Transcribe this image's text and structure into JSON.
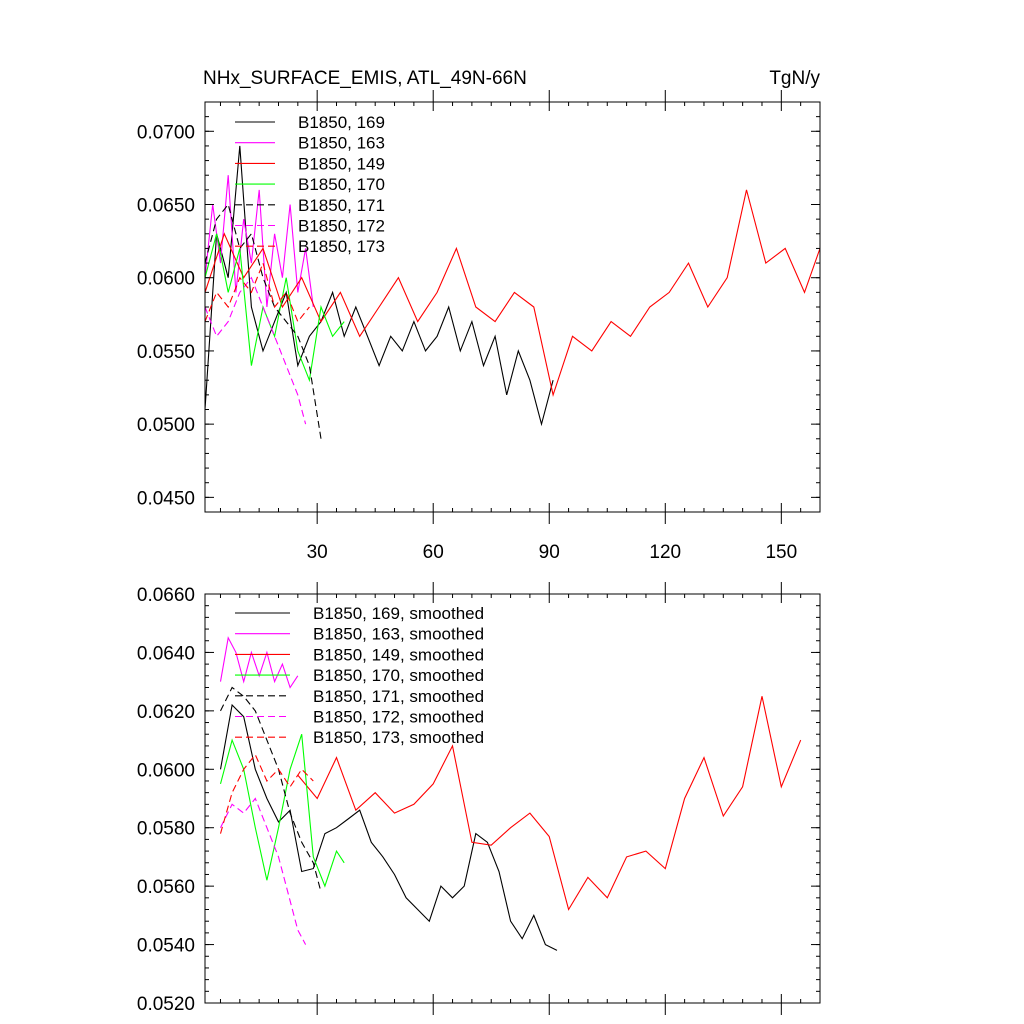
{
  "chart_data": [
    {
      "type": "line",
      "title": "NHx_SURFACE_EMIS, ATL_49N-66N",
      "units": "TgN/y",
      "xlim": [
        1,
        160
      ],
      "ylim": [
        0.044,
        0.072
      ],
      "xticks": [
        30,
        60,
        90,
        120,
        150
      ],
      "xtick_labels": [
        "30",
        "60",
        "90",
        "120",
        "150"
      ],
      "yticks": [
        0.045,
        0.05,
        0.055,
        0.06,
        0.065,
        0.07
      ],
      "ytick_labels": [
        "0.0450",
        "0.0500",
        "0.0550",
        "0.0600",
        "0.0650",
        "0.0700"
      ],
      "grid": false,
      "legend_position": "top-left",
      "series": [
        {
          "name": "B1850, 169",
          "color": "#000000",
          "dash": "solid",
          "x": [
            1,
            4,
            7,
            10,
            13,
            16,
            19,
            22,
            25,
            28,
            31,
            34,
            37,
            40,
            43,
            46,
            49,
            52,
            55,
            58,
            61,
            64,
            67,
            70,
            73,
            76,
            79,
            82,
            85,
            88,
            91
          ],
          "values": [
            0.051,
            0.063,
            0.06,
            0.069,
            0.058,
            0.055,
            0.057,
            0.059,
            0.054,
            0.056,
            0.057,
            0.059,
            0.056,
            0.058,
            0.056,
            0.054,
            0.056,
            0.055,
            0.057,
            0.055,
            0.056,
            0.058,
            0.055,
            0.057,
            0.054,
            0.056,
            0.052,
            0.055,
            0.053,
            0.05,
            0.053
          ]
        },
        {
          "name": "B1850, 163",
          "color": "#ff00ff",
          "dash": "solid",
          "x": [
            1,
            3,
            5,
            7,
            9,
            11,
            13,
            15,
            17,
            19,
            21,
            23,
            25,
            27,
            29
          ],
          "values": [
            0.06,
            0.065,
            0.061,
            0.067,
            0.059,
            0.064,
            0.061,
            0.066,
            0.058,
            0.063,
            0.06,
            0.065,
            0.059,
            0.062,
            0.058
          ]
        },
        {
          "name": "B1850, 149",
          "color": "#ff0000",
          "dash": "solid",
          "x": [
            1,
            6,
            11,
            16,
            21,
            26,
            31,
            36,
            41,
            46,
            51,
            56,
            61,
            66,
            71,
            76,
            81,
            86,
            91,
            96,
            101,
            106,
            111,
            116,
            121,
            126,
            131,
            136,
            141,
            146,
            151,
            156,
            160
          ],
          "values": [
            0.059,
            0.063,
            0.06,
            0.062,
            0.058,
            0.06,
            0.057,
            0.059,
            0.056,
            0.058,
            0.06,
            0.057,
            0.059,
            0.062,
            0.058,
            0.057,
            0.059,
            0.058,
            0.052,
            0.056,
            0.055,
            0.057,
            0.056,
            0.058,
            0.059,
            0.061,
            0.058,
            0.06,
            0.066,
            0.061,
            0.062,
            0.059,
            0.062
          ]
        },
        {
          "name": "B1850, 170",
          "color": "#00ff00",
          "dash": "solid",
          "x": [
            1,
            4,
            7,
            10,
            13,
            16,
            19,
            22,
            25,
            28,
            31,
            34,
            37
          ],
          "values": [
            0.06,
            0.063,
            0.059,
            0.062,
            0.054,
            0.058,
            0.056,
            0.06,
            0.055,
            0.053,
            0.058,
            0.056,
            0.057
          ]
        },
        {
          "name": "B1850, 171",
          "color": "#000000",
          "dash": "dashed",
          "x": [
            1,
            4,
            7,
            10,
            13,
            16,
            19,
            22,
            25,
            28,
            31
          ],
          "values": [
            0.061,
            0.064,
            0.065,
            0.062,
            0.063,
            0.06,
            0.058,
            0.057,
            0.056,
            0.054,
            0.049
          ]
        },
        {
          "name": "B1850, 172",
          "color": "#ff00ff",
          "dash": "dashed",
          "x": [
            1,
            4,
            7,
            10,
            13,
            16,
            19,
            22,
            25,
            27
          ],
          "values": [
            0.058,
            0.056,
            0.057,
            0.059,
            0.06,
            0.058,
            0.056,
            0.054,
            0.052,
            0.05
          ]
        },
        {
          "name": "B1850, 173",
          "color": "#ff0000",
          "dash": "dashed",
          "x": [
            1,
            4,
            7,
            10,
            13,
            16,
            19,
            22,
            25,
            28
          ],
          "values": [
            0.057,
            0.059,
            0.058,
            0.06,
            0.059,
            0.061,
            0.058,
            0.059,
            0.057,
            0.058
          ]
        }
      ]
    },
    {
      "type": "line",
      "title": "",
      "xlim": [
        1,
        160
      ],
      "ylim": [
        0.052,
        0.066
      ],
      "xticks": [
        30,
        60,
        90,
        120,
        150
      ],
      "xtick_labels": [
        "",
        "",
        "",
        "",
        ""
      ],
      "yticks": [
        0.052,
        0.054,
        0.056,
        0.058,
        0.06,
        0.062,
        0.064,
        0.066
      ],
      "ytick_labels": [
        "0.0520",
        "0.0540",
        "0.0560",
        "0.0580",
        "0.0600",
        "0.0620",
        "0.0640",
        "0.0660"
      ],
      "grid": false,
      "legend_position": "top-left",
      "series": [
        {
          "name": "B1850, 169, smoothed",
          "color": "#000000",
          "dash": "solid",
          "x": [
            5,
            8,
            11,
            14,
            17,
            20,
            23,
            26,
            29,
            32,
            35,
            38,
            41,
            44,
            47,
            50,
            53,
            56,
            59,
            62,
            65,
            68,
            71,
            74,
            77,
            80,
            83,
            86,
            89,
            92
          ],
          "values": [
            0.06,
            0.0622,
            0.0618,
            0.06,
            0.059,
            0.0582,
            0.0586,
            0.0565,
            0.0566,
            0.0578,
            0.058,
            0.0583,
            0.0586,
            0.0575,
            0.057,
            0.0564,
            0.0556,
            0.0552,
            0.0548,
            0.056,
            0.0556,
            0.056,
            0.0578,
            0.0575,
            0.0565,
            0.0548,
            0.0542,
            0.055,
            0.054,
            0.0538
          ]
        },
        {
          "name": "B1850, 163, smoothed",
          "color": "#ff00ff",
          "dash": "solid",
          "x": [
            5,
            7,
            9,
            11,
            13,
            15,
            17,
            19,
            21,
            23,
            25
          ],
          "values": [
            0.063,
            0.0645,
            0.064,
            0.063,
            0.064,
            0.0632,
            0.064,
            0.063,
            0.0636,
            0.0628,
            0.0632
          ]
        },
        {
          "name": "B1850, 149, smoothed",
          "color": "#ff0000",
          "dash": "solid",
          "x": [
            25,
            30,
            35,
            40,
            45,
            50,
            55,
            60,
            65,
            70,
            75,
            80,
            85,
            90,
            95,
            100,
            105,
            110,
            115,
            120,
            125,
            130,
            135,
            140,
            145,
            150,
            155
          ],
          "values": [
            0.0598,
            0.059,
            0.0604,
            0.0586,
            0.0592,
            0.0585,
            0.0588,
            0.0595,
            0.0608,
            0.0575,
            0.0574,
            0.058,
            0.0585,
            0.0577,
            0.0552,
            0.0563,
            0.0556,
            0.057,
            0.0572,
            0.0566,
            0.059,
            0.0604,
            0.0584,
            0.0594,
            0.0625,
            0.0594,
            0.061
          ]
        },
        {
          "name": "B1850, 170, smoothed",
          "color": "#00ff00",
          "dash": "solid",
          "x": [
            5,
            8,
            11,
            14,
            17,
            20,
            23,
            26,
            29,
            32,
            35,
            37
          ],
          "values": [
            0.0595,
            0.061,
            0.06,
            0.058,
            0.0562,
            0.058,
            0.06,
            0.0612,
            0.057,
            0.056,
            0.0572,
            0.0568
          ]
        },
        {
          "name": "B1850, 171, smoothed",
          "color": "#000000",
          "dash": "dashed",
          "x": [
            5,
            8,
            11,
            14,
            17,
            20,
            23,
            26,
            29,
            31
          ],
          "values": [
            0.062,
            0.0628,
            0.0625,
            0.062,
            0.061,
            0.06,
            0.0585,
            0.0575,
            0.0568,
            0.0558
          ]
        },
        {
          "name": "B1850, 172, smoothed",
          "color": "#ff00ff",
          "dash": "dashed",
          "x": [
            5,
            8,
            11,
            14,
            17,
            20,
            23,
            25,
            27
          ],
          "values": [
            0.058,
            0.0588,
            0.0585,
            0.059,
            0.058,
            0.057,
            0.0555,
            0.0545,
            0.054
          ]
        },
        {
          "name": "B1850, 173, smoothed",
          "color": "#ff0000",
          "dash": "dashed",
          "x": [
            5,
            8,
            11,
            14,
            17,
            20,
            23,
            26,
            29
          ],
          "values": [
            0.0578,
            0.0592,
            0.06,
            0.0605,
            0.0596,
            0.06,
            0.0594,
            0.06,
            0.0596
          ]
        }
      ]
    }
  ]
}
